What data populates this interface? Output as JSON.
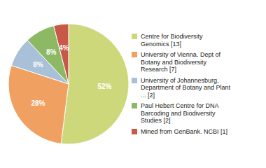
{
  "chart_data": {
    "type": "pie",
    "categories": [
      "Centre for Biodiversity\nGenomics [13]",
      "University of Vienna. Dept of\nBotany and Biodiversity\nResearch [7]",
      "University of Johannesburg,\nDepartment of Botany and Plant\n... [2]",
      "Paul Hebert Centre for DNA\nBarcoding and Biodiversity\nStudies [2]",
      "Mined from GenBank. NCBI [1]"
    ],
    "values": [
      52,
      28,
      8,
      8,
      4
    ],
    "value_labels": [
      "52%",
      "28%",
      "8%",
      "8%",
      "4%"
    ],
    "colors": [
      "#cdd87a",
      "#f0a060",
      "#a8c0d8",
      "#8db864",
      "#c85848"
    ],
    "data_labels": true,
    "legend": "right"
  }
}
